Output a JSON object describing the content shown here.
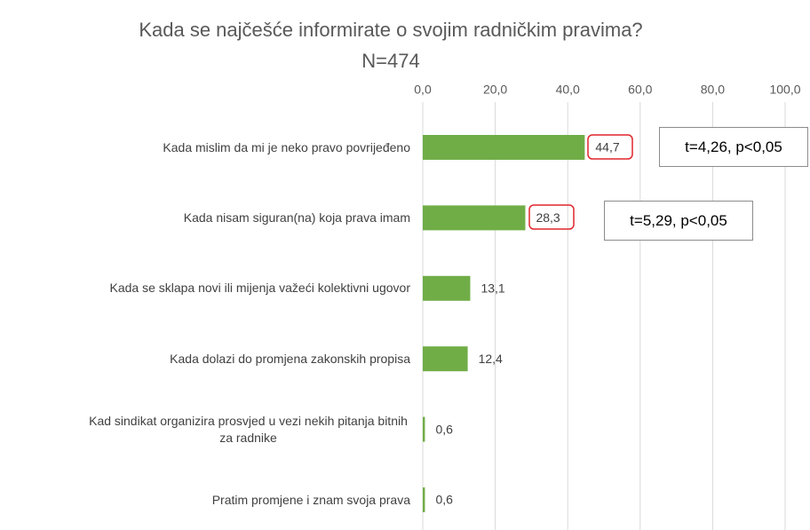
{
  "chart_data": {
    "type": "hbar",
    "title": "Kada se najčešće informirate o svojim radničkim pravima?",
    "subtitle": "N=474",
    "categories": [
      "Kada mislim da mi je neko pravo povrijeđeno",
      "Kada nisam siguran(na) koja prava imam",
      "Kada se sklapa novi ili mijenja važeći kolektivni ugovor",
      "Kada dolazi do promjena zakonskih propisa",
      "Kad sindikat organizira prosvjed u vezi nekih pitanja bitnih za radnike",
      "Pratim promjene i znam svoja prava"
    ],
    "values": [
      44.7,
      28.3,
      13.1,
      12.4,
      0.6,
      0.6
    ],
    "value_labels": [
      "44,7",
      "28,3",
      "13,1",
      "12,4",
      "0,6",
      "0,6"
    ],
    "color": "#70ad47",
    "xlim": [
      0,
      100
    ],
    "xticks": [
      {
        "value": 0,
        "label": "0,0"
      },
      {
        "value": 20,
        "label": "20,0"
      },
      {
        "value": 40,
        "label": "40,0"
      },
      {
        "value": 60,
        "label": "60,0"
      },
      {
        "value": 80,
        "label": "80,0"
      },
      {
        "value": 100,
        "label": "100,0"
      }
    ],
    "grid": true,
    "annotations": [
      "t=4,26, p<0,05",
      "t=5,29, p<0,05"
    ]
  }
}
